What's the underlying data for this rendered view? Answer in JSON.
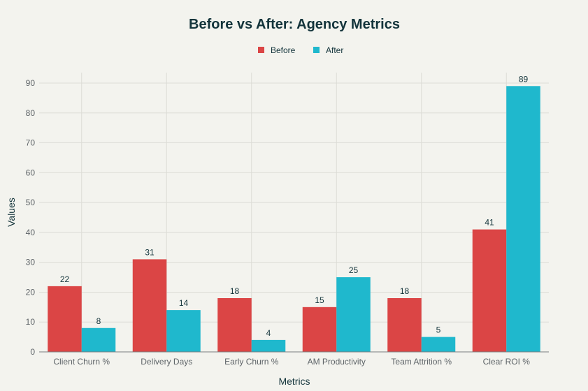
{
  "chart_data": {
    "type": "bar",
    "title": "Before vs After: Agency Metrics",
    "xlabel": "Metrics",
    "ylabel": "Values",
    "categories": [
      "Client Churn %",
      "Delivery Days",
      "Early Churn %",
      "AM Productivity",
      "Team Attrition %",
      "Clear ROI %"
    ],
    "series": [
      {
        "name": "Before",
        "color": "#db4545",
        "values": [
          22,
          31,
          18,
          15,
          18,
          41
        ]
      },
      {
        "name": "After",
        "color": "#1fb8cd",
        "values": [
          8,
          14,
          4,
          25,
          5,
          89
        ]
      }
    ],
    "ylim": [
      0,
      90
    ],
    "yticks": [
      0,
      10,
      20,
      30,
      40,
      50,
      60,
      70,
      80,
      90
    ],
    "grid": true,
    "legend": "top-center",
    "data_labels": true
  }
}
